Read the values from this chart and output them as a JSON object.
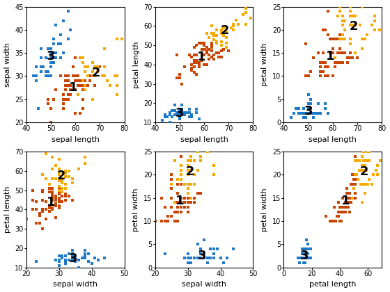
{
  "subplots": [
    {
      "xlabel": "sepal length",
      "ylabel": "sepal width",
      "xlim": [
        40,
        80
      ],
      "ylim": [
        20,
        45
      ]
    },
    {
      "xlabel": "sepal length",
      "ylabel": "petal length",
      "xlim": [
        40,
        80
      ],
      "ylim": [
        10,
        70
      ]
    },
    {
      "xlabel": "sepal length",
      "ylabel": "petal width",
      "xlim": [
        40,
        80
      ],
      "ylim": [
        0,
        25
      ]
    },
    {
      "xlabel": "sepal width",
      "ylabel": "petal length",
      "xlim": [
        20,
        50
      ],
      "ylim": [
        10,
        70
      ]
    },
    {
      "xlabel": "sepal width",
      "ylabel": "petal width",
      "xlim": [
        20,
        50
      ],
      "ylim": [
        0,
        25
      ]
    },
    {
      "xlabel": "petal length",
      "ylabel": "petal width",
      "xlim": [
        0,
        70
      ],
      "ylim": [
        0,
        25
      ]
    }
  ],
  "cluster_colors": [
    "#c84400",
    "#f5a800",
    "#1e7ac9"
  ],
  "cluster_labels": [
    "1",
    "2",
    "3"
  ],
  "marker_size": 6,
  "label_fontsize": 13,
  "tick_fontsize": 7,
  "axis_label_fontsize": 8,
  "label_offsets": [
    [
      [
        3,
        -1
      ],
      [
        4,
        2
      ],
      [
        -1,
        2
      ]
    ],
    [
      [
        3,
        -1
      ],
      [
        4,
        2
      ],
      [
        -1,
        2
      ]
    ],
    [
      [
        3,
        -1
      ],
      [
        4,
        2
      ],
      [
        -1,
        2
      ]
    ],
    [
      [
        3,
        -1
      ],
      [
        4,
        2
      ],
      [
        -1,
        2
      ]
    ],
    [
      [
        3,
        -1
      ],
      [
        4,
        2
      ],
      [
        -1,
        2
      ]
    ],
    [
      [
        3,
        -1
      ],
      [
        4,
        2
      ],
      [
        -1,
        2
      ]
    ]
  ]
}
